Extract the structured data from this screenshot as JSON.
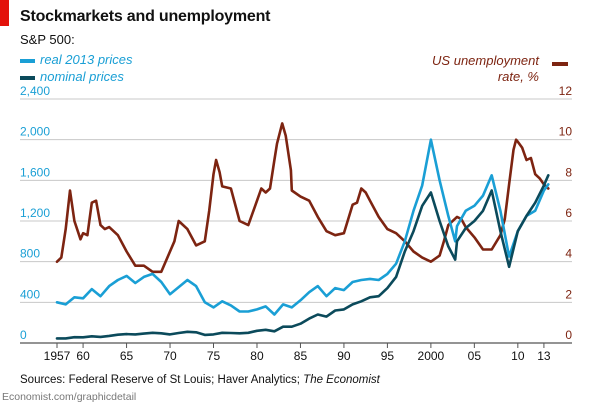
{
  "header": {
    "title": "Stockmarkets and unemployment",
    "subtitle": "S&P 500:"
  },
  "legend": {
    "real": "real 2013 prices",
    "nominal": "nominal prices",
    "unemployment_line1": "US unemployment",
    "unemployment_line2": "rate, %"
  },
  "colors": {
    "real": "#1a9fd5",
    "nominal": "#0b4a5b",
    "unemployment": "#7d2411",
    "left_axis_text": "#1a9fd5",
    "right_axis_text": "#7d2411",
    "grid": "#c8c8c8",
    "accent": "#e3120b"
  },
  "footer": {
    "sources_prefix": "Sources: Federal Reserve of St Louis; Haver Analytics;",
    "publication": "The Economist",
    "credit": "Economist.com/graphicdetail"
  },
  "chart_data": {
    "type": "line",
    "title": "Stockmarkets and unemployment",
    "subtitle": "S&P 500:",
    "grid": true,
    "legend_placement": "top",
    "xlim": [
      1957,
      2013.7
    ],
    "x_ticks": [
      1957,
      1960,
      1965,
      1970,
      1975,
      1980,
      1985,
      1990,
      1995,
      2000,
      2005,
      2010,
      2013
    ],
    "x_tick_labels": [
      "1957",
      "60",
      "65",
      "70",
      "75",
      "80",
      "85",
      "90",
      "95",
      "2000",
      "05",
      "10",
      "13"
    ],
    "left_axis": {
      "ylim": [
        0,
        2400
      ],
      "ticks": [
        0,
        400,
        800,
        1200,
        1600,
        2000,
        2400
      ],
      "tick_labels": [
        "0",
        "400",
        "800",
        "1,200",
        "1,600",
        "2,000",
        "2,400"
      ]
    },
    "right_axis": {
      "ylim": [
        0,
        12
      ],
      "ticks": [
        0,
        2,
        4,
        6,
        8,
        10,
        12
      ],
      "tick_labels": [
        "0",
        "2",
        "4",
        "6",
        "8",
        "10",
        "12"
      ]
    },
    "series": [
      {
        "name": "real 2013 prices",
        "axis": "left",
        "x": [
          1957,
          1958,
          1959,
          1960,
          1961,
          1962,
          1963,
          1964,
          1965,
          1966,
          1967,
          1968,
          1969,
          1970,
          1971,
          1972,
          1973,
          1974,
          1975,
          1976,
          1977,
          1978,
          1979,
          1980,
          1981,
          1982,
          1983,
          1984,
          1985,
          1986,
          1987,
          1988,
          1989,
          1990,
          1991,
          1992,
          1993,
          1994,
          1995,
          1996,
          1997,
          1998,
          1999,
          2000,
          2001,
          2002,
          2002.8,
          2003,
          2004,
          2005,
          2006,
          2007,
          2008,
          2009,
          2010,
          2011,
          2012,
          2013,
          2013.5
        ],
        "y": [
          400,
          380,
          450,
          440,
          530,
          460,
          560,
          620,
          660,
          590,
          650,
          680,
          600,
          480,
          550,
          620,
          560,
          400,
          350,
          410,
          370,
          310,
          310,
          330,
          360,
          280,
          380,
          350,
          420,
          500,
          560,
          460,
          540,
          520,
          600,
          620,
          630,
          620,
          680,
          780,
          1000,
          1300,
          1550,
          2000,
          1600,
          1250,
          1000,
          1150,
          1300,
          1350,
          1450,
          1650,
          1300,
          850,
          1100,
          1250,
          1300,
          1500,
          1560
        ]
      },
      {
        "name": "nominal prices",
        "axis": "left",
        "x": [
          1957,
          1958,
          1959,
          1960,
          1961,
          1962,
          1963,
          1964,
          1965,
          1966,
          1967,
          1968,
          1969,
          1970,
          1971,
          1972,
          1973,
          1974,
          1975,
          1976,
          1977,
          1978,
          1979,
          1980,
          1981,
          1982,
          1983,
          1984,
          1985,
          1986,
          1987,
          1988,
          1989,
          1990,
          1991,
          1992,
          1993,
          1994,
          1995,
          1996,
          1997,
          1998,
          1999,
          2000,
          2001,
          2002,
          2002.8,
          2003,
          2004,
          2005,
          2006,
          2007,
          2008,
          2009,
          2010,
          2011,
          2012,
          2013,
          2013.5
        ],
        "y": [
          45,
          45,
          57,
          56,
          66,
          60,
          70,
          82,
          88,
          85,
          92,
          100,
          95,
          85,
          98,
          110,
          105,
          80,
          85,
          100,
          98,
          95,
          100,
          120,
          130,
          115,
          160,
          160,
          190,
          240,
          280,
          260,
          320,
          330,
          380,
          410,
          450,
          460,
          540,
          650,
          900,
          1100,
          1350,
          1480,
          1200,
          950,
          820,
          1000,
          1130,
          1200,
          1300,
          1500,
          1100,
          750,
          1100,
          1250,
          1380,
          1550,
          1650
        ]
      },
      {
        "name": "US unemployment rate, %",
        "axis": "right",
        "x": [
          1957,
          1957.5,
          1958,
          1958.5,
          1959,
          1959.7,
          1960,
          1960.5,
          1961,
          1961.5,
          1962,
          1962.5,
          1963,
          1964,
          1965,
          1966,
          1967,
          1968,
          1969,
          1970,
          1970.5,
          1971,
          1972,
          1973,
          1974,
          1974.5,
          1975,
          1975.3,
          1975.7,
          1976,
          1977,
          1978,
          1979,
          1980,
          1980.5,
          1981,
          1981.5,
          1982,
          1982.3,
          1982.9,
          1983.3,
          1983.9,
          1984,
          1985,
          1986,
          1987,
          1988,
          1989,
          1990,
          1991,
          1991.5,
          1992,
          1992.5,
          1993,
          1994,
          1995,
          1996,
          1997,
          1998,
          1999,
          2000,
          2001,
          2001.5,
          2002,
          2003,
          2003.5,
          2004,
          2005,
          2006,
          2007,
          2008,
          2008.5,
          2009,
          2009.5,
          2009.8,
          2010,
          2010.5,
          2011,
          2011.5,
          2012,
          2012.5,
          2013,
          2013.5
        ],
        "y": [
          4.0,
          4.2,
          5.6,
          7.5,
          6.0,
          5.1,
          5.4,
          5.3,
          6.9,
          7.0,
          5.8,
          5.6,
          5.7,
          5.3,
          4.5,
          3.8,
          3.8,
          3.5,
          3.5,
          4.5,
          5.0,
          6.0,
          5.6,
          4.8,
          5.0,
          6.5,
          8.3,
          9.0,
          8.4,
          7.7,
          7.6,
          6.0,
          5.8,
          7.0,
          7.6,
          7.4,
          7.6,
          9.0,
          9.8,
          10.8,
          10.2,
          8.5,
          7.5,
          7.2,
          7.0,
          6.2,
          5.5,
          5.3,
          5.4,
          6.8,
          6.9,
          7.6,
          7.4,
          7.0,
          6.2,
          5.6,
          5.4,
          5.0,
          4.5,
          4.2,
          4.0,
          4.3,
          5.0,
          5.8,
          6.2,
          6.1,
          5.7,
          5.2,
          4.6,
          4.6,
          5.3,
          6.1,
          7.8,
          9.5,
          10.0,
          9.9,
          9.6,
          9.0,
          9.1,
          8.3,
          8.1,
          7.8,
          7.6
        ]
      }
    ]
  }
}
